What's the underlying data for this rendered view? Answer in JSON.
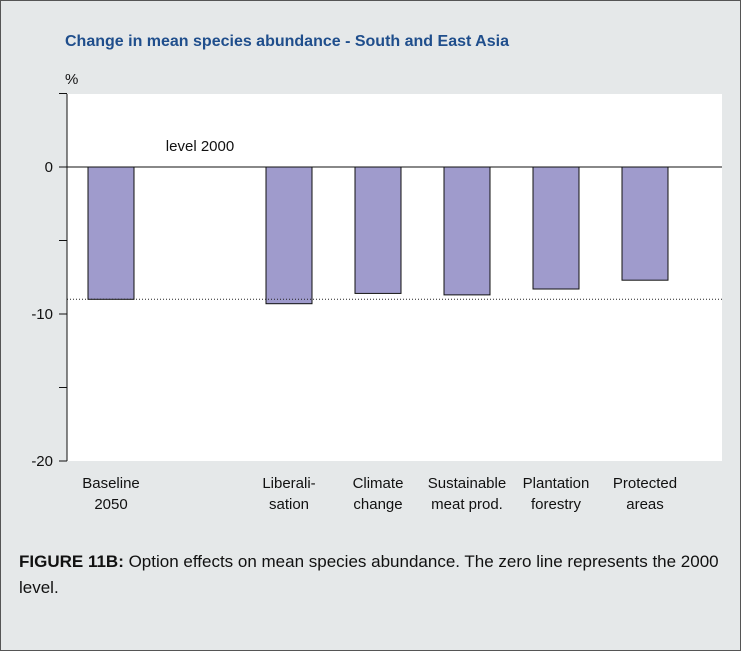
{
  "chart_data": {
    "type": "bar",
    "title": "Change in mean species abundance - South and East Asia",
    "ylabel": "%",
    "ylim": [
      -20,
      5
    ],
    "yticks": [
      0,
      -10,
      -20
    ],
    "categories": [
      [
        "Baseline",
        "2050"
      ],
      [
        "",
        ""
      ],
      [
        "Liberali-",
        "sation"
      ],
      [
        "Climate",
        "change"
      ],
      [
        "Sustainable",
        "meat prod."
      ],
      [
        "Plantation",
        "forestry"
      ],
      [
        "Protected",
        "areas"
      ]
    ],
    "values": [
      -9.0,
      0,
      -9.3,
      -8.6,
      -8.7,
      -8.3,
      -7.7
    ],
    "reference_line": -9.0,
    "annotation": "level 2000",
    "colors": {
      "bar": "#9f9bcc",
      "plot_bg": "#ffffff",
      "panel_bg": "#e5e8e9",
      "title": "#1f4e8c"
    }
  },
  "caption": {
    "label": "FIGURE 11B:",
    "text": " Option effects on mean species abundance. The zero line represents the 2000 level."
  }
}
